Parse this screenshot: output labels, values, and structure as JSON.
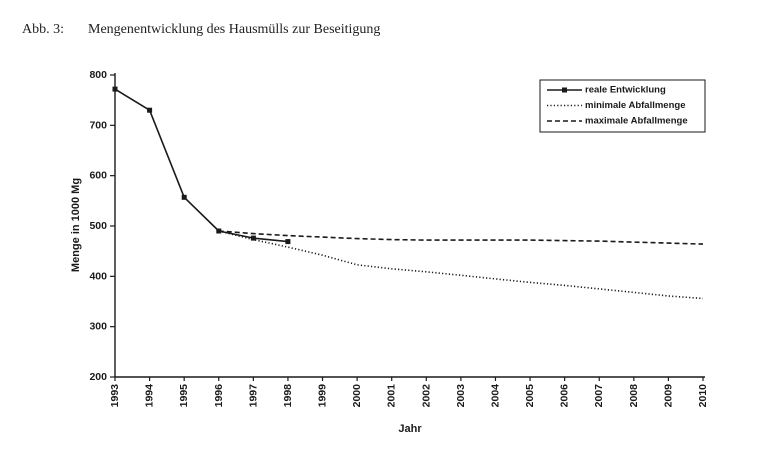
{
  "chart_data": {
    "type": "line",
    "figure_label": "Abb. 3:",
    "title": "Mengenentwicklung des Hausmülls zur Beseitigung",
    "xlabel": "Jahr",
    "ylabel": "Menge in 1000 Mg",
    "x": [
      "1993",
      "1994",
      "1995",
      "1996",
      "1997",
      "1998",
      "1999",
      "2000",
      "2001",
      "2002",
      "2003",
      "2004",
      "2005",
      "2006",
      "2007",
      "2008",
      "2009",
      "2010"
    ],
    "ylim": [
      200,
      800
    ],
    "yticks": [
      200,
      300,
      400,
      500,
      600,
      700,
      800
    ],
    "grid": false,
    "legend_position": "top-right",
    "series": [
      {
        "name": "reale Entwicklung",
        "line_style": "solid",
        "marker": "square",
        "color": "#1a1a1a",
        "values": [
          772,
          730,
          557,
          490,
          476,
          469,
          null,
          null,
          null,
          null,
          null,
          null,
          null,
          null,
          null,
          null,
          null,
          null
        ]
      },
      {
        "name": "minimale Abfallmenge",
        "line_style": "dotted",
        "marker": "none",
        "color": "#1a1a1a",
        "values": [
          null,
          null,
          null,
          490,
          473,
          458,
          442,
          423,
          415,
          409,
          402,
          395,
          388,
          382,
          375,
          368,
          361,
          356
        ]
      },
      {
        "name": "maximale Abfallmenge",
        "line_style": "dashed",
        "marker": "none",
        "color": "#1a1a1a",
        "values": [
          null,
          null,
          null,
          490,
          485,
          481,
          478,
          475,
          473,
          472,
          472,
          472,
          472,
          471,
          470,
          468,
          466,
          464
        ]
      }
    ]
  }
}
